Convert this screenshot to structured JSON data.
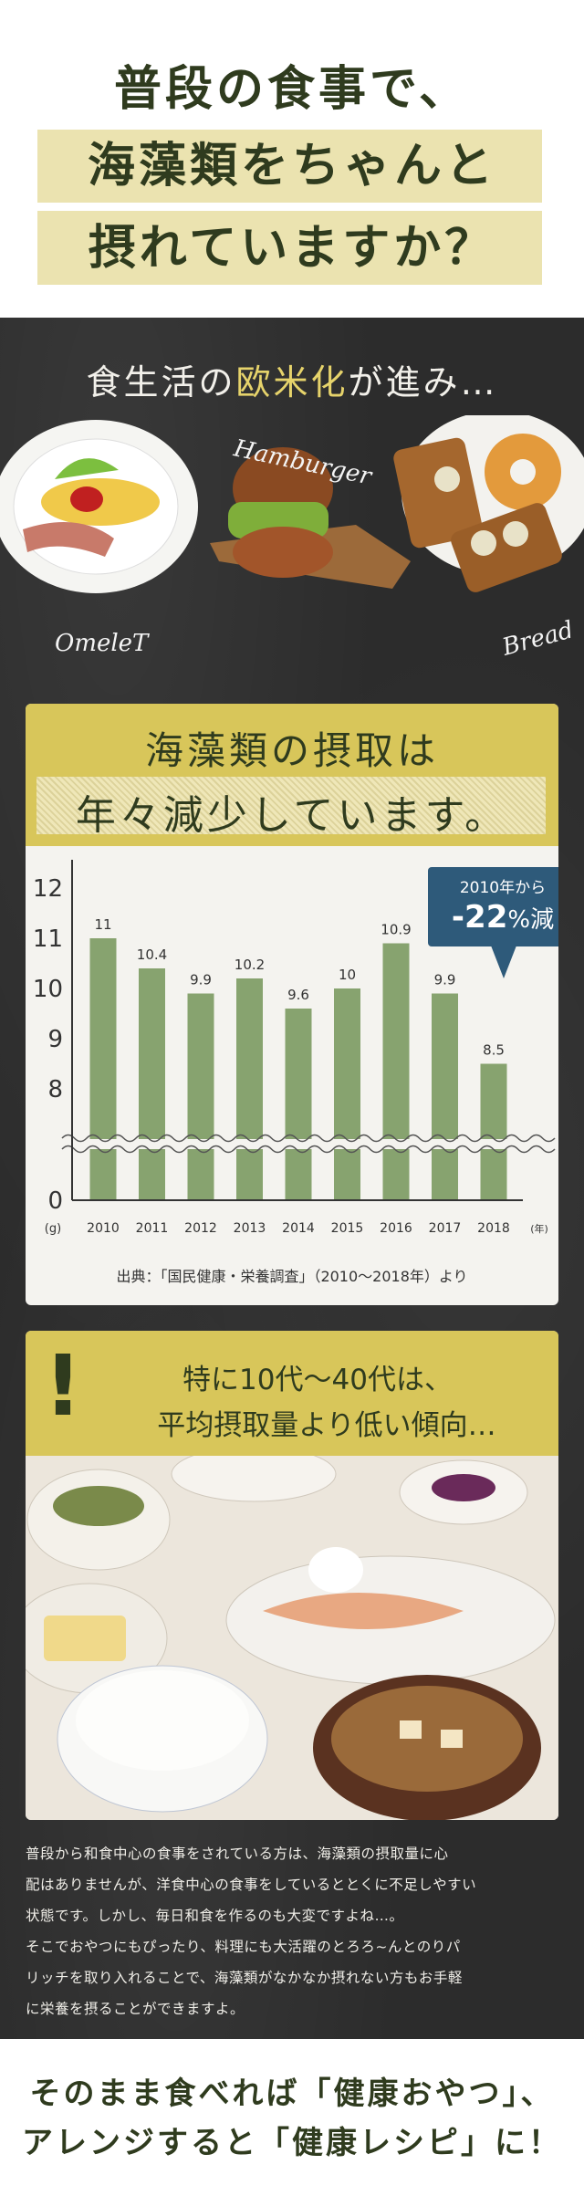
{
  "header": {
    "line1": "普段の食事で、",
    "line2": "海藻類をちゃんと",
    "line3": "摂れていますか？"
  },
  "intro": {
    "before": "食生活の",
    "highlight": "欧米化",
    "after": "が進み…",
    "labels": {
      "omelet": "OmeleT",
      "hamburger": "Hamburger",
      "bread": "Bread"
    }
  },
  "chart_card": {
    "title_line1": "海藻類の摂取は",
    "title_line2": "年々減少しています。",
    "source": "出典：「国民健康・栄養調査」（2010～2018年）より",
    "callout": {
      "line1": "2010年から",
      "value": "-22",
      "unit": "%減"
    }
  },
  "chart_data": {
    "type": "bar",
    "title": "海藻類の摂取は年々減少しています。",
    "xlabel": "(年)",
    "ylabel": "(g)",
    "categories": [
      "2010",
      "2011",
      "2012",
      "2013",
      "2014",
      "2015",
      "2016",
      "2017",
      "2018"
    ],
    "values": [
      11,
      10.4,
      9.9,
      10.2,
      9.6,
      10,
      10.9,
      9.9,
      8.5
    ],
    "labels": [
      "11",
      "10.4",
      "9.9",
      "10.2",
      "9.6",
      "10",
      "10.9",
      "9.9",
      "8.5"
    ],
    "yticks": [
      "12",
      "11",
      "10",
      "9",
      "8",
      "0"
    ],
    "ytick_values": [
      12,
      11,
      10,
      9,
      8,
      0
    ],
    "axis_break": true,
    "ylim": [
      0,
      12
    ],
    "grid": false,
    "bar_color": "#87a36f"
  },
  "warning": {
    "mark": "!",
    "line1": "特に10代～40代は、",
    "line2": "平均摂取量より低い傾向…"
  },
  "body_text": [
    "普段から和食中心の食事をされている方は、海藻類の摂取量に心",
    "配はありませんが、洋食中心の食事をしているととくに不足しやすい",
    "状態です。しかし、毎日和食を作るのも大変ですよね…。",
    "そこでおやつにもぴったり、料理にも大活躍のとろろ~んとのりパ",
    "リッチを取り入れることで、海藻類がなかなか摂れない方もお手軽",
    "に栄養を摂ることができますよ。"
  ],
  "footer": {
    "line1": "そのまま食べれば「健康おやつ」、",
    "line2": "アレンジすると「健康レシピ」に！"
  },
  "colors": {
    "text": "#2f3b1e",
    "band": "#ebe3b0",
    "yellow": "#d8c65a",
    "bar": "#87a36f",
    "callout": "#2e5a7a",
    "board": "#2c2c2c"
  }
}
